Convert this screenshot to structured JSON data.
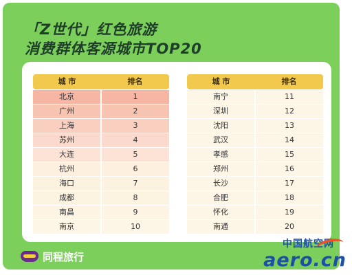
{
  "title_line1": "「Z世代」红色旅游",
  "title_line2": "消费群体客源城市TOP20",
  "columns": {
    "city": "城 市",
    "rank": "排名"
  },
  "left_rows": [
    {
      "city": "北京",
      "rank": "1",
      "shade": "#f6b6a3"
    },
    {
      "city": "广州",
      "rank": "2",
      "shade": "#f8c4b2"
    },
    {
      "city": "上海",
      "rank": "3",
      "shade": "#f9d0c0"
    },
    {
      "city": "苏州",
      "rank": "4",
      "shade": "#fbdacd"
    },
    {
      "city": "大连",
      "rank": "5",
      "shade": "#fce3d6"
    },
    {
      "city": "杭州",
      "rank": "6",
      "shade": "#fdf0df"
    },
    {
      "city": "海口",
      "rank": "7",
      "shade": "#fdf2e0"
    },
    {
      "city": "成都",
      "rank": "8",
      "shade": "#fdf3e1"
    },
    {
      "city": "南昌",
      "rank": "9",
      "shade": "#fdf4e3"
    },
    {
      "city": "南京",
      "rank": "10",
      "shade": "#fdf5e5"
    }
  ],
  "right_rows": [
    {
      "city": "南宁",
      "rank": "11",
      "shade": "#fdf5e5"
    },
    {
      "city": "深圳",
      "rank": "12",
      "shade": "#fdf5e5"
    },
    {
      "city": "沈阳",
      "rank": "13",
      "shade": "#fdf5e5"
    },
    {
      "city": "武汉",
      "rank": "14",
      "shade": "#fdf5e5"
    },
    {
      "city": "孝感",
      "rank": "15",
      "shade": "#fdf5e5"
    },
    {
      "city": "郑州",
      "rank": "16",
      "shade": "#fdf5e5"
    },
    {
      "city": "长沙",
      "rank": "17",
      "shade": "#fdf5e5"
    },
    {
      "city": "合肥",
      "rank": "18",
      "shade": "#fdf5e5"
    },
    {
      "city": "怀化",
      "rank": "19",
      "shade": "#fdf5e5"
    },
    {
      "city": "南通",
      "rank": "20",
      "shade": "#fdf5e5"
    }
  ],
  "brand": "同程旅行",
  "watermark": {
    "cn": "中国航空网",
    "en": "aero.cn"
  },
  "colors": {
    "background": "#7ccf5a",
    "header": "#f2c94c",
    "title": "#1f3e2a"
  }
}
